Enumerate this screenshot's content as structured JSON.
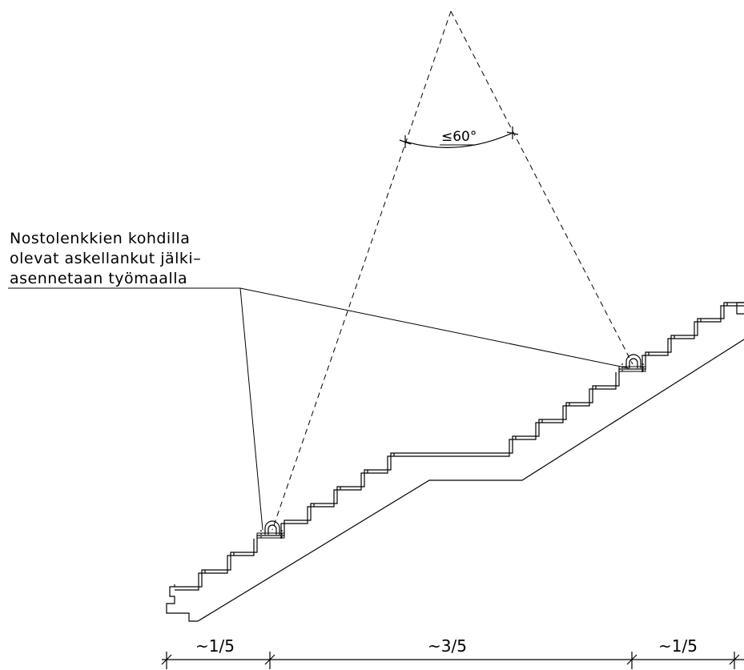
{
  "annotation": {
    "lines": [
      "Nostolenkkien kohdilla",
      "olevat askellankut jälki–",
      "asennetaan työmaalla"
    ]
  },
  "angle_label": "≤60°",
  "dimensions": {
    "left": "~1/5",
    "middle": "~3/5",
    "right": "~1/5"
  }
}
